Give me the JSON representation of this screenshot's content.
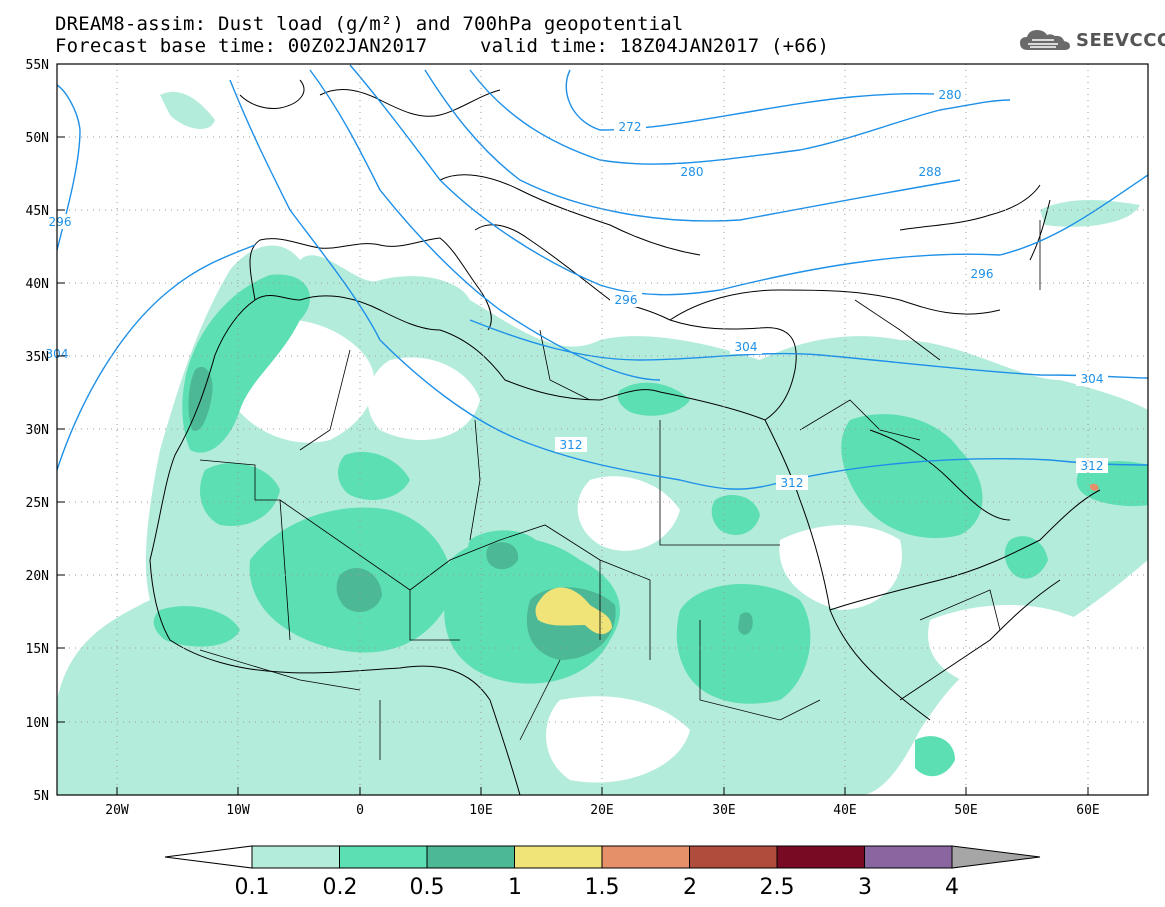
{
  "header": {
    "line1": "DREAM8-assim: Dust load (g/m²) and 700hPa geopotential",
    "line2_base": "Forecast base time: 00Z02JAN2017",
    "line2_valid": "valid time: 18Z04JAN2017 (+66)"
  },
  "logo": {
    "text": "SEEVCCC",
    "icon": "cloud-icon"
  },
  "axes": {
    "lon_labels": [
      "20W",
      "10W",
      "0",
      "10E",
      "20E",
      "30E",
      "40E",
      "50E",
      "60E"
    ],
    "lat_labels": [
      "55N",
      "50N",
      "45N",
      "40N",
      "35N",
      "30N",
      "25N",
      "20N",
      "15N",
      "10N",
      "5N"
    ]
  },
  "contour_labels": [
    "272",
    "280",
    "280",
    "288",
    "296",
    "296",
    "296",
    "304",
    "304",
    "304",
    "312",
    "312",
    "312"
  ],
  "colorbar": {
    "labels": [
      "0.1",
      "0.2",
      "0.5",
      "1",
      "1.5",
      "2",
      "2.5",
      "3",
      "4"
    ],
    "colors": [
      "#b4ecdc",
      "#5ddfb4",
      "#4cb896",
      "#f0e478",
      "#e6906a",
      "#b04c3c",
      "#780a24",
      "#8a66a0"
    ],
    "under_color": "#ffffff",
    "over_color": "#a6a6a6"
  },
  "colors": {
    "coast": "#000000",
    "contour": "#1e90e8",
    "grid": "#9a9a9a"
  }
}
